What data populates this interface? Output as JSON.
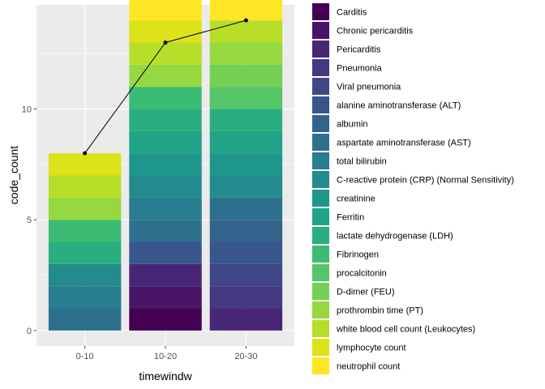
{
  "chart_data": {
    "type": "bar",
    "stacked": true,
    "title": "",
    "xlabel": "timewindw",
    "ylabel": "code_count",
    "categories": [
      "0-10",
      "10-20",
      "20-30"
    ],
    "ylim": [
      0,
      14.7
    ],
    "yticks": [
      0,
      5,
      10
    ],
    "grid": true,
    "legend_position": "right",
    "series": [
      {
        "name": "Carditis",
        "color": "#440154",
        "values": [
          0,
          1,
          0
        ]
      },
      {
        "name": "Chronic pericarditis",
        "color": "#481567",
        "values": [
          0,
          1,
          0
        ]
      },
      {
        "name": "Pericarditis",
        "color": "#482677",
        "values": [
          0,
          1,
          1
        ]
      },
      {
        "name": "Pneumonia",
        "color": "#453781",
        "values": [
          0,
          0,
          1
        ]
      },
      {
        "name": "Viral pneumonia",
        "color": "#404788",
        "values": [
          0,
          0,
          1
        ]
      },
      {
        "name": "alanine aminotransferase (ALT)",
        "color": "#39568C",
        "values": [
          0,
          1,
          1
        ]
      },
      {
        "name": "albumin",
        "color": "#33638D",
        "values": [
          0,
          0,
          1
        ]
      },
      {
        "name": "aspartate aminotransferase (AST)",
        "color": "#2D708E",
        "values": [
          1,
          1,
          1
        ]
      },
      {
        "name": "total bilirubin",
        "color": "#287D8E",
        "values": [
          1,
          1,
          0
        ]
      },
      {
        "name": "C-reactive protein (CRP) (Normal Sensitivity)",
        "color": "#238A8D",
        "values": [
          1,
          1,
          1
        ]
      },
      {
        "name": "creatinine",
        "color": "#1F968B",
        "values": [
          0,
          1,
          1
        ]
      },
      {
        "name": "Ferritin",
        "color": "#20A387",
        "values": [
          0,
          1,
          1
        ]
      },
      {
        "name": "lactate dehydrogenase (LDH)",
        "color": "#29AF7F",
        "values": [
          1,
          1,
          1
        ]
      },
      {
        "name": "Fibrinogen",
        "color": "#3CBB75",
        "values": [
          1,
          1,
          0
        ]
      },
      {
        "name": "procalcitonin",
        "color": "#55C667",
        "values": [
          0,
          0,
          1
        ]
      },
      {
        "name": "D-dimer (FEU)",
        "color": "#73D055",
        "values": [
          0,
          0,
          1
        ]
      },
      {
        "name": "prothrombin time (PT)",
        "color": "#95D840",
        "values": [
          1,
          1,
          1
        ]
      },
      {
        "name": "white blood cell count (Leukocytes)",
        "color": "#B8DE29",
        "values": [
          1,
          1,
          1
        ]
      },
      {
        "name": "lymphocyte count",
        "color": "#DCE319",
        "values": [
          1,
          1,
          0
        ]
      },
      {
        "name": "neutrophil count",
        "color": "#FDE725",
        "values": [
          0,
          1,
          1
        ]
      }
    ],
    "line": {
      "values": [
        8,
        13,
        14
      ],
      "color": "#000000"
    }
  }
}
